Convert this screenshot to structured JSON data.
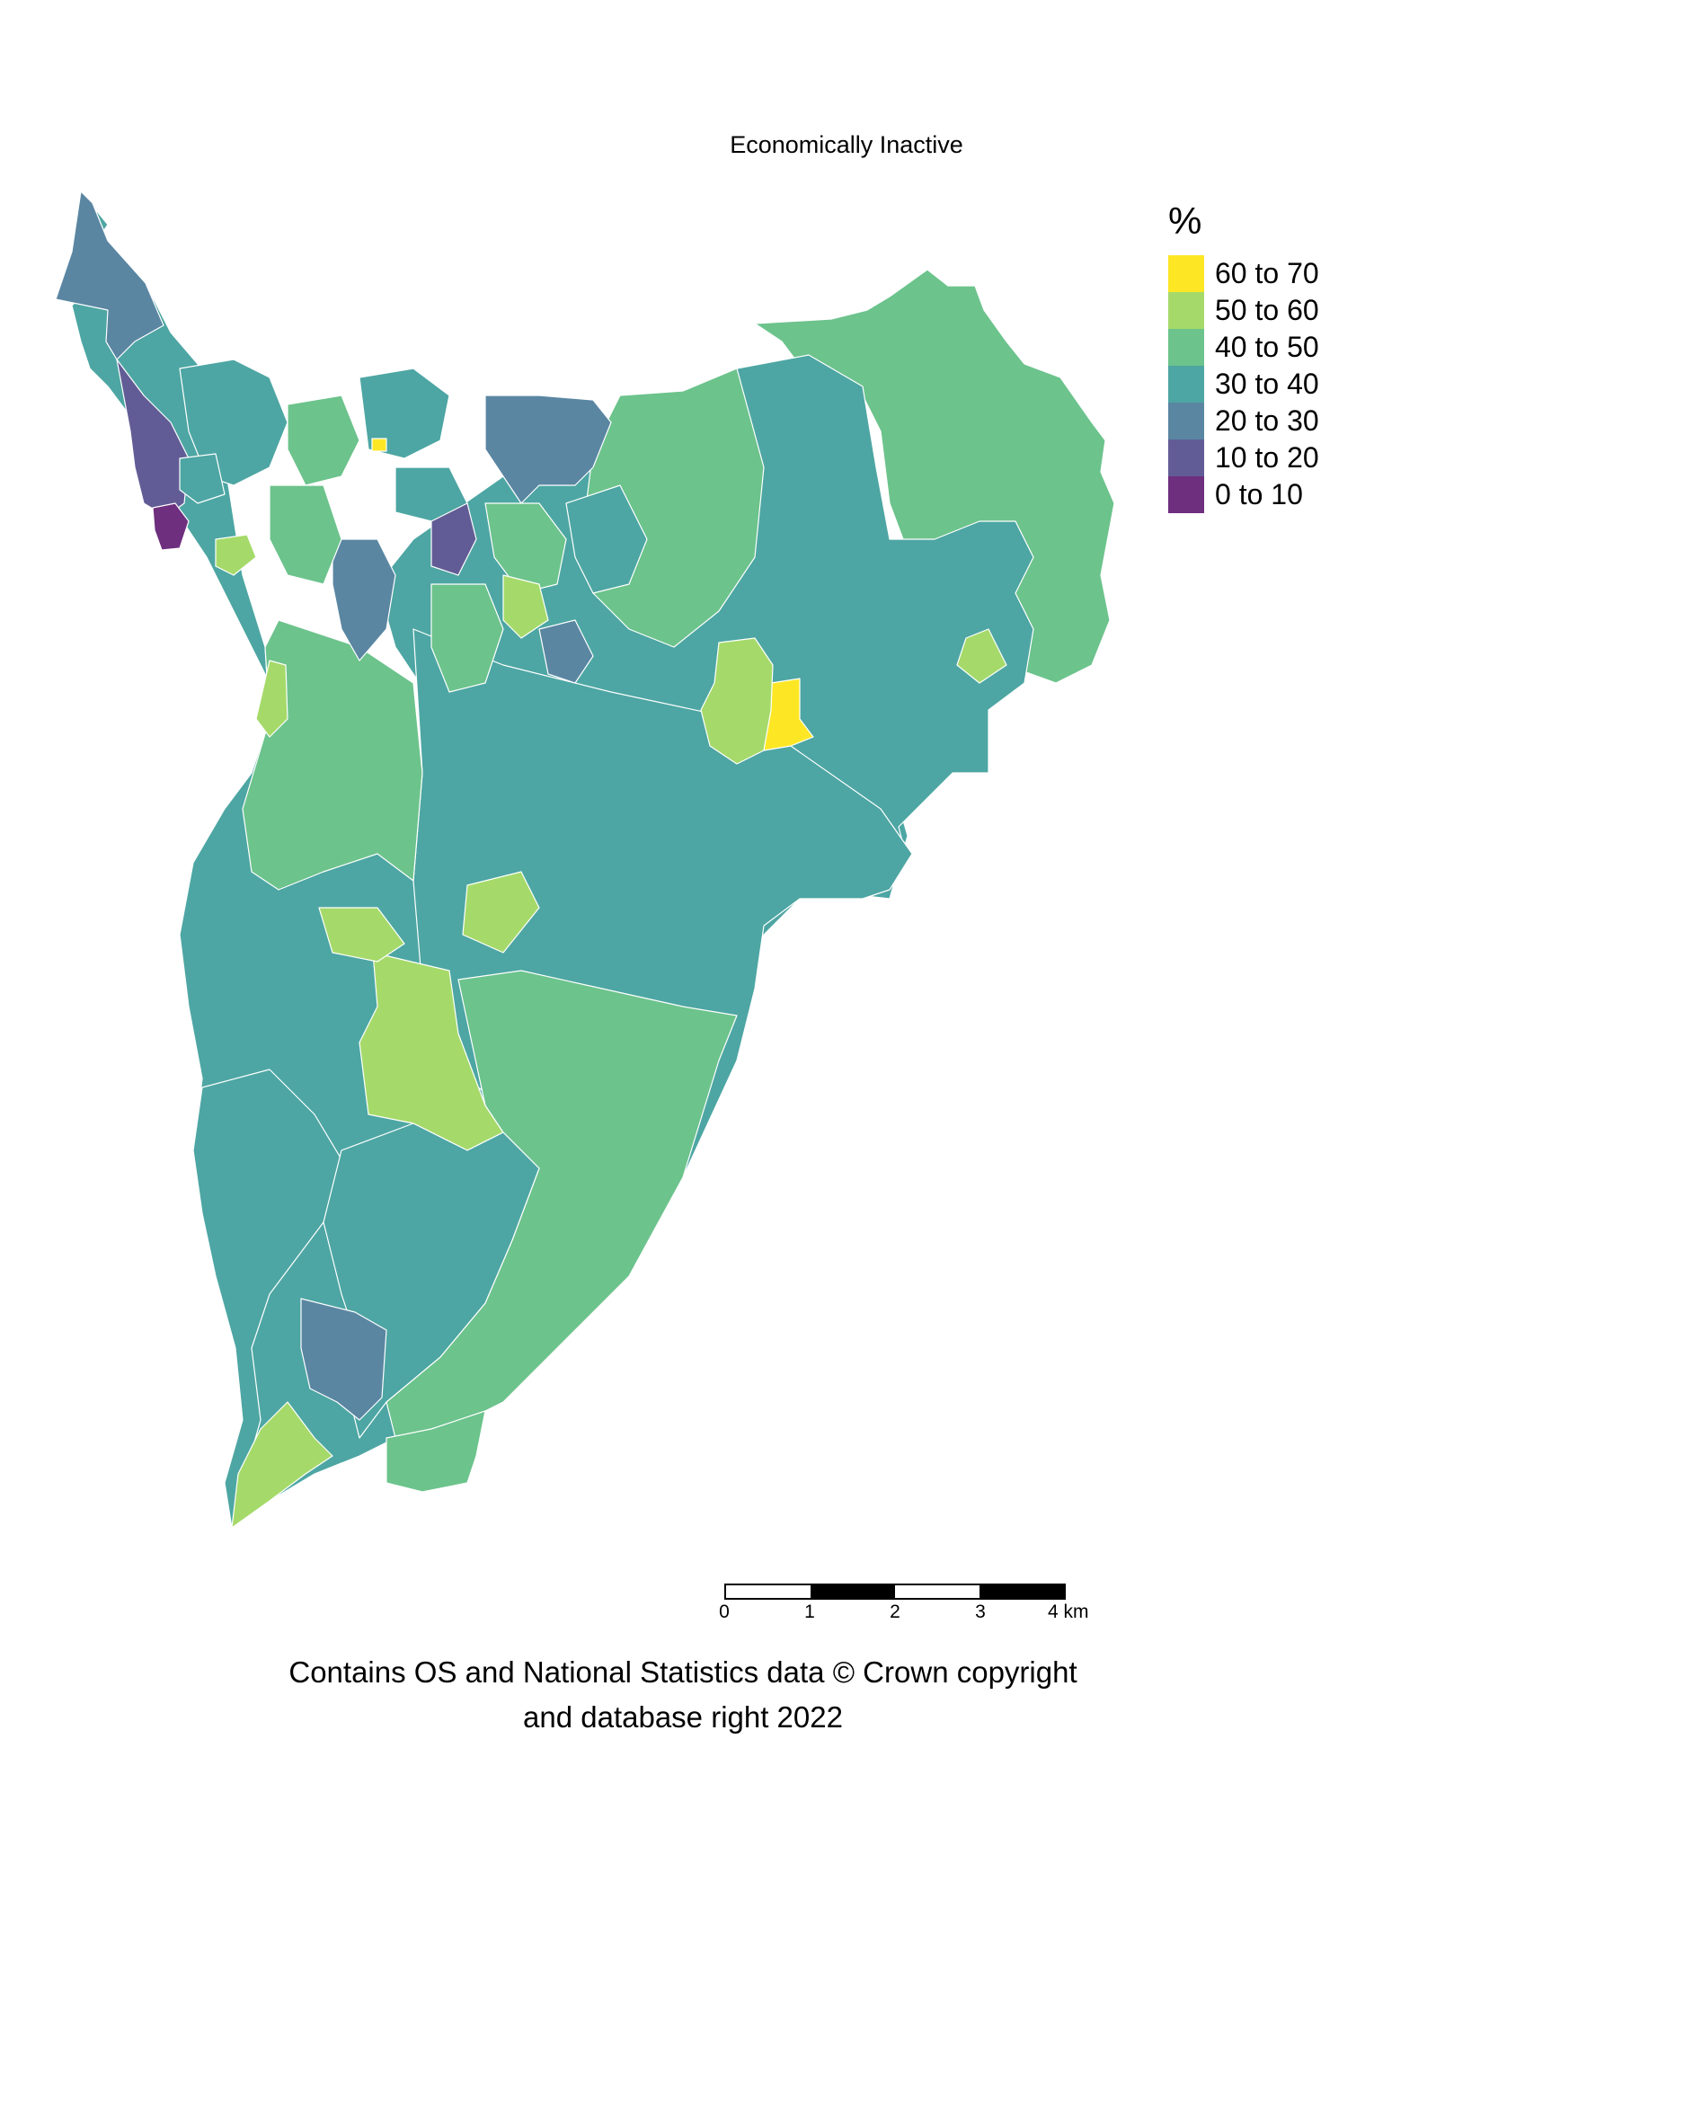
{
  "map": {
    "title": "Economically Inactive",
    "legend": {
      "title": "%",
      "items": [
        {
          "label": "60 to 70",
          "color": "#fde725"
        },
        {
          "label": "50 to 60",
          "color": "#a5da6a"
        },
        {
          "label": "40 to 50",
          "color": "#6cc38c"
        },
        {
          "label": "30 to 40",
          "color": "#4da6a3"
        },
        {
          "label": "20 to 30",
          "color": "#5a86a2"
        },
        {
          "label": "10 to 20",
          "color": "#625c96"
        },
        {
          "label": "0 to 10",
          "color": "#6e2f7e"
        }
      ]
    },
    "scalebar": {
      "ticks": [
        "0",
        "1",
        "2",
        "3",
        "4 km"
      ]
    },
    "attribution": {
      "line1": "Contains OS and National Statistics data © Crown copyright",
      "line2": "and database right 2022"
    }
  }
}
